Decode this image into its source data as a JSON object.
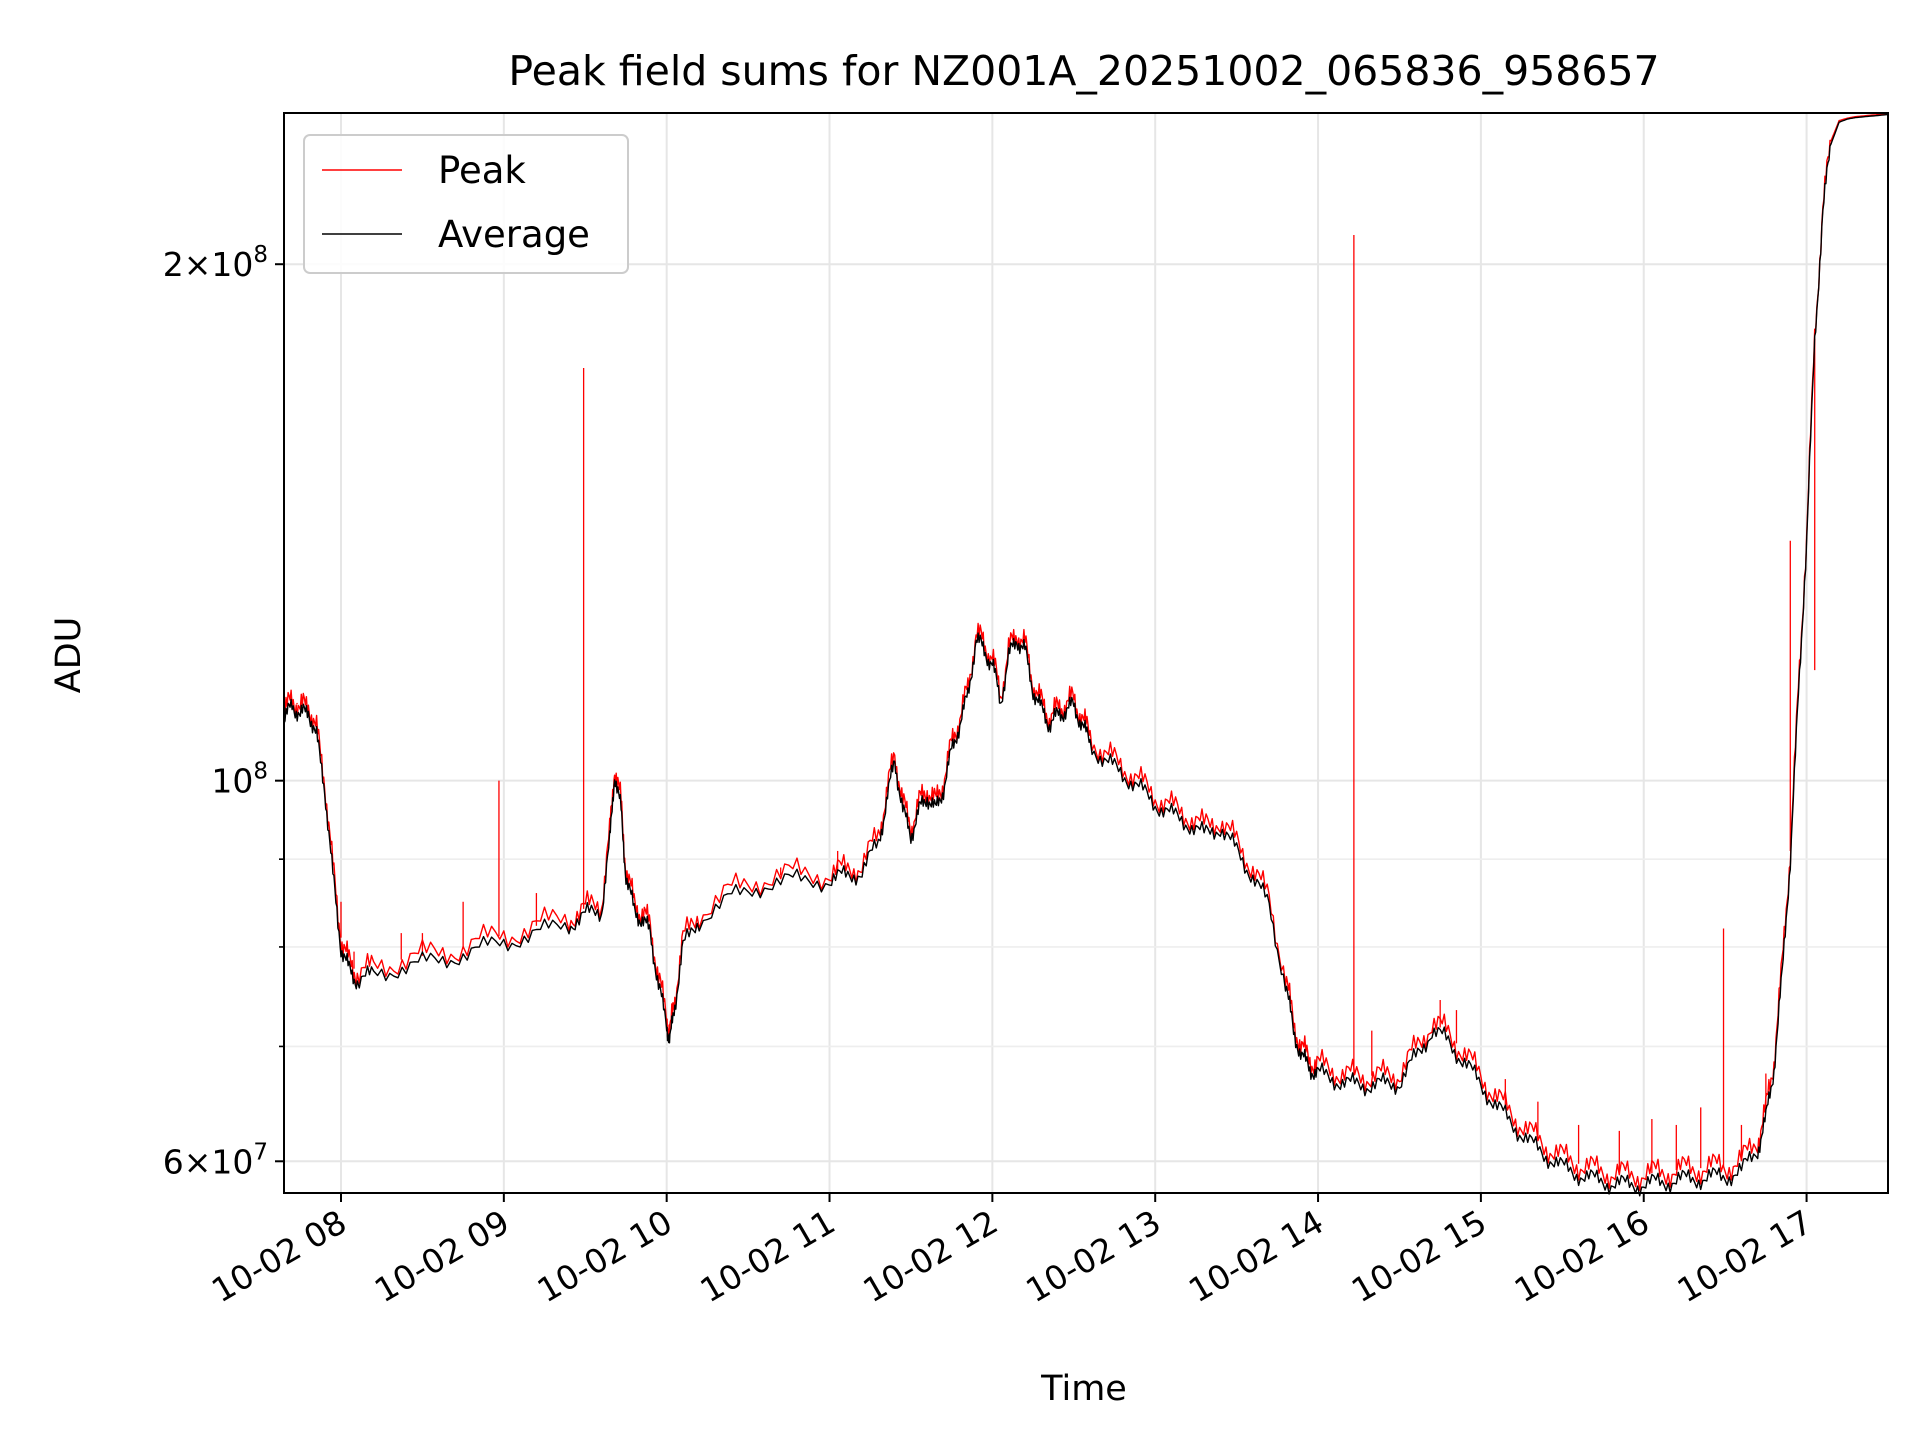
{
  "chart_data": {
    "type": "line",
    "title": "Peak field sums for NZ001A_20251002_065836_958657",
    "xlabel": "Time",
    "ylabel": "ADU",
    "yscale": "log",
    "grid": true,
    "legend_position": "top-left",
    "xlim": [
      7.65,
      17.5
    ],
    "ylim": [
      57500000,
      245000000
    ],
    "x_unit": "hour of day (2025-10-02)",
    "x_ticks": [
      {
        "value": 8,
        "label": "10-02 08"
      },
      {
        "value": 9,
        "label": "10-02 09"
      },
      {
        "value": 10,
        "label": "10-02 10"
      },
      {
        "value": 11,
        "label": "10-02 11"
      },
      {
        "value": 12,
        "label": "10-02 12"
      },
      {
        "value": 13,
        "label": "10-02 13"
      },
      {
        "value": 14,
        "label": "10-02 14"
      },
      {
        "value": 15,
        "label": "10-02 15"
      },
      {
        "value": 16,
        "label": "10-02 16"
      },
      {
        "value": 17,
        "label": "10-02 17"
      }
    ],
    "y_ticks": [
      {
        "value": 60000000,
        "base": "6",
        "exp": "7"
      },
      {
        "value": 100000000,
        "base": "",
        "exp": "8"
      },
      {
        "value": 200000000,
        "base": "2",
        "exp": "8"
      }
    ],
    "y_minor_ticks": [
      70000000,
      80000000,
      90000000
    ],
    "series": [
      {
        "name": "Average",
        "color": "#000000",
        "x": [
          7.65,
          7.7,
          7.75,
          7.8,
          7.85,
          7.9,
          7.95,
          8.0,
          8.05,
          8.1,
          8.2,
          8.4,
          8.6,
          8.8,
          9.0,
          9.2,
          9.4,
          9.5,
          9.6,
          9.65,
          9.68,
          9.72,
          9.75,
          9.8,
          9.85,
          9.9,
          9.95,
          10.0,
          10.02,
          10.05,
          10.1,
          10.2,
          10.4,
          10.6,
          10.8,
          11.0,
          11.1,
          11.2,
          11.3,
          11.35,
          11.4,
          11.45,
          11.5,
          11.55,
          11.6,
          11.65,
          11.7,
          11.75,
          11.8,
          11.85,
          11.9,
          11.95,
          12.0,
          12.05,
          12.1,
          12.15,
          12.2,
          12.25,
          12.3,
          12.35,
          12.4,
          12.45,
          12.5,
          12.55,
          12.6,
          12.7,
          12.8,
          12.9,
          13.0,
          13.1,
          13.2,
          13.3,
          13.4,
          13.5,
          13.6,
          13.7,
          13.8,
          13.85,
          13.9,
          13.95,
          14.0,
          14.1,
          14.2,
          14.3,
          14.4,
          14.5,
          14.6,
          14.7,
          14.8,
          14.9,
          15.0,
          15.1,
          15.2,
          15.3,
          15.4,
          15.5,
          15.6,
          15.7,
          15.8,
          15.9,
          16.0,
          16.1,
          16.2,
          16.3,
          16.4,
          16.5,
          16.6,
          16.7,
          16.75,
          16.8,
          16.85,
          16.9,
          16.95,
          17.0,
          17.05,
          17.1,
          17.15,
          17.2,
          17.25,
          17.3,
          17.4,
          17.5
        ],
        "values": [
          108000000,
          111000000,
          109000000,
          110000000,
          106000000,
          99000000,
          88000000,
          80000000,
          77500000,
          76500000,
          77000000,
          78000000,
          78500000,
          79500000,
          80500000,
          81500000,
          82500000,
          83500000,
          84000000,
          92000000,
          101000000,
          96000000,
          88000000,
          84000000,
          83000000,
          81500000,
          76000000,
          72000000,
          70500000,
          74000000,
          80000000,
          83000000,
          85500000,
          87000000,
          87500000,
          87500000,
          88000000,
          88500000,
          92000000,
          97000000,
          103000000,
          96000000,
          93000000,
          96000000,
          98000000,
          96000000,
          99000000,
          104000000,
          108000000,
          112000000,
          121000000,
          119000000,
          117000000,
          111000000,
          118000000,
          121000000,
          119000000,
          113000000,
          110000000,
          108000000,
          109000000,
          110000000,
          110500000,
          108000000,
          105000000,
          102500000,
          101000000,
          99000000,
          97000000,
          95500000,
          94500000,
          93000000,
          94000000,
          91000000,
          88000000,
          84500000,
          76000000,
          71500000,
          69000000,
          68000000,
          67500000,
          67000000,
          66500000,
          66500000,
          66500000,
          66700000,
          69000000,
          71500000,
          70500000,
          68500000,
          66500000,
          64500000,
          63000000,
          61500000,
          60500000,
          59500000,
          59000000,
          58500000,
          58300000,
          58100000,
          58200000,
          58300000,
          58500000,
          58600000,
          58700000,
          58800000,
          59200000,
          61000000,
          63500000,
          68000000,
          77000000,
          90000000,
          112000000,
          138000000,
          180000000,
          215000000,
          235000000,
          242000000,
          243000000,
          243500000,
          244000000,
          244500000
        ]
      },
      {
        "name": "Peak",
        "color": "#ff0000",
        "x": [
          7.65,
          7.7,
          7.75,
          7.8,
          7.85,
          7.9,
          7.95,
          8.0,
          8.05,
          8.1,
          8.2,
          8.4,
          8.6,
          8.8,
          9.0,
          9.2,
          9.4,
          9.5,
          9.6,
          9.65,
          9.68,
          9.72,
          9.75,
          9.8,
          9.85,
          9.9,
          9.95,
          10.0,
          10.02,
          10.05,
          10.1,
          10.2,
          10.4,
          10.6,
          10.8,
          11.0,
          11.1,
          11.2,
          11.3,
          11.35,
          11.4,
          11.45,
          11.5,
          11.55,
          11.6,
          11.65,
          11.7,
          11.75,
          11.8,
          11.85,
          11.9,
          11.95,
          12.0,
          12.05,
          12.1,
          12.15,
          12.2,
          12.25,
          12.3,
          12.35,
          12.4,
          12.45,
          12.5,
          12.55,
          12.6,
          12.7,
          12.8,
          12.9,
          13.0,
          13.1,
          13.2,
          13.3,
          13.4,
          13.5,
          13.6,
          13.7,
          13.8,
          13.85,
          13.9,
          13.95,
          14.0,
          14.1,
          14.2,
          14.3,
          14.4,
          14.5,
          14.6,
          14.7,
          14.8,
          14.9,
          15.0,
          15.1,
          15.2,
          15.3,
          15.4,
          15.5,
          15.6,
          15.7,
          15.8,
          15.9,
          16.0,
          16.1,
          16.2,
          16.3,
          16.4,
          16.5,
          16.6,
          16.7,
          16.75,
          16.8,
          16.85,
          16.9,
          16.95,
          17.0,
          17.05,
          17.1,
          17.15,
          17.2,
          17.25,
          17.3,
          17.4,
          17.5
        ],
        "values": [
          109000000,
          112000000,
          110000000,
          111000000,
          107000000,
          100000000,
          89000000,
          81000000,
          78300000,
          77300000,
          77800000,
          78800000,
          79300000,
          80300000,
          81300000,
          82300000,
          83300000,
          84300000,
          84800000,
          93000000,
          102000000,
          97000000,
          88800000,
          84800000,
          83800000,
          82300000,
          76800000,
          72800000,
          71200000,
          74800000,
          80800000,
          83800000,
          86300000,
          87800000,
          88300000,
          88300000,
          88800000,
          89300000,
          93000000,
          98000000,
          104000000,
          97000000,
          94000000,
          97000000,
          99000000,
          97000000,
          100000000,
          105000000,
          109000000,
          113000000,
          122000000,
          120000000,
          118000000,
          112000000,
          119000000,
          122000000,
          120000000,
          114000000,
          111000000,
          109000000,
          110000000,
          111000000,
          111500000,
          109000000,
          106000000,
          103500000,
          102000000,
          100000000,
          98000000,
          96500000,
          95500000,
          94000000,
          95000000,
          92000000,
          89000000,
          85300000,
          76800000,
          72300000,
          69800000,
          68800000,
          68300000,
          67800000,
          67300000,
          67300000,
          67300000,
          67500000,
          69800000,
          72300000,
          71300000,
          69300000,
          67300000,
          65300000,
          63800000,
          62300000,
          61300000,
          60300000,
          59800000,
          59300000,
          59100000,
          58900000,
          59000000,
          59100000,
          59300000,
          59400000,
          59500000,
          59600000,
          60000000,
          61800000,
          64300000,
          68800000,
          78000000,
          91000000,
          113000000,
          139000000,
          181000000,
          216000000,
          236000000,
          242500000,
          243300000,
          243800000,
          244300000,
          244800000
        ]
      }
    ],
    "peak_spikes": [
      {
        "x": 7.73,
        "value": 111000000
      },
      {
        "x": 8.0,
        "value": 85000000
      },
      {
        "x": 8.08,
        "value": 79500000
      },
      {
        "x": 8.37,
        "value": 81500000
      },
      {
        "x": 8.5,
        "value": 81500000
      },
      {
        "x": 8.75,
        "value": 85000000
      },
      {
        "x": 8.97,
        "value": 100000000
      },
      {
        "x": 9.2,
        "value": 86000000
      },
      {
        "x": 9.49,
        "value": 174000000
      },
      {
        "x": 10.7,
        "value": 89000000
      },
      {
        "x": 11.05,
        "value": 91000000
      },
      {
        "x": 14.22,
        "value": 208000000
      },
      {
        "x": 14.33,
        "value": 71500000
      },
      {
        "x": 14.75,
        "value": 74500000
      },
      {
        "x": 14.85,
        "value": 73500000
      },
      {
        "x": 15.15,
        "value": 67000000
      },
      {
        "x": 15.35,
        "value": 65000000
      },
      {
        "x": 15.6,
        "value": 63000000
      },
      {
        "x": 15.85,
        "value": 62500000
      },
      {
        "x": 16.05,
        "value": 63500000
      },
      {
        "x": 16.2,
        "value": 63000000
      },
      {
        "x": 16.35,
        "value": 64500000
      },
      {
        "x": 16.49,
        "value": 82000000
      },
      {
        "x": 16.6,
        "value": 63000000
      },
      {
        "x": 16.75,
        "value": 67500000
      },
      {
        "x": 16.9,
        "value": 138000000
      },
      {
        "x": 17.05,
        "value": 116000000
      }
    ],
    "legend": [
      {
        "name": "Peak",
        "color": "#ff0000"
      },
      {
        "name": "Average",
        "color": "#000000"
      }
    ]
  }
}
